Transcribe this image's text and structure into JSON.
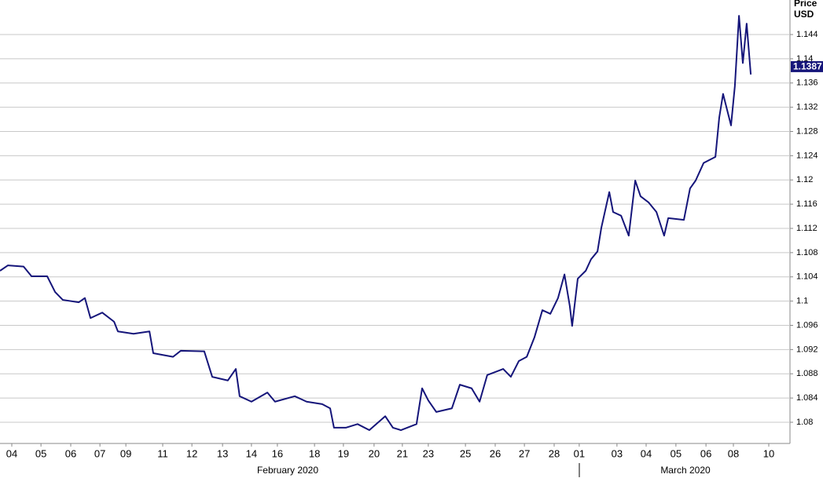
{
  "chart_data": {
    "type": "line",
    "y_axis_title": "Price",
    "y_axis_unit": "USD",
    "last_price": 1.1387,
    "month_labels": [
      "February 2020",
      "March 2020"
    ],
    "color": "#15157a",
    "grid": true,
    "xlim": [
      0,
      26.8
    ],
    "ylim": [
      1.0765,
      1.1497
    ],
    "yticks": [
      1.08,
      1.084,
      1.088,
      1.092,
      1.096,
      1.1,
      1.104,
      1.108,
      1.112,
      1.116,
      1.12,
      1.124,
      1.128,
      1.132,
      1.136,
      1.14,
      1.144
    ],
    "xticks": [
      {
        "value": 0.4,
        "label": "04"
      },
      {
        "value": 1.39,
        "label": "05"
      },
      {
        "value": 2.4,
        "label": "06"
      },
      {
        "value": 3.39,
        "label": "07"
      },
      {
        "value": 4.27,
        "label": "09"
      },
      {
        "value": 5.52,
        "label": "11"
      },
      {
        "value": 6.51,
        "label": "12"
      },
      {
        "value": 7.55,
        "label": "13"
      },
      {
        "value": 8.53,
        "label": "14"
      },
      {
        "value": 9.41,
        "label": "16"
      },
      {
        "value": 10.67,
        "label": "18"
      },
      {
        "value": 11.65,
        "label": "19"
      },
      {
        "value": 12.69,
        "label": "20"
      },
      {
        "value": 13.65,
        "label": "21"
      },
      {
        "value": 14.53,
        "label": "23"
      },
      {
        "value": 15.79,
        "label": "25"
      },
      {
        "value": 16.8,
        "label": "26"
      },
      {
        "value": 17.79,
        "label": "27"
      },
      {
        "value": 18.8,
        "label": "28"
      },
      {
        "value": 19.65,
        "label": "01"
      },
      {
        "value": 20.93,
        "label": "03"
      },
      {
        "value": 21.92,
        "label": "04"
      },
      {
        "value": 22.93,
        "label": "05"
      },
      {
        "value": 23.95,
        "label": "06"
      },
      {
        "value": 24.88,
        "label": "08"
      },
      {
        "value": 26.08,
        "label": "10"
      }
    ],
    "x": [
      0,
      0.27,
      0.8,
      1.07,
      1.6,
      1.87,
      2.13,
      2.67,
      2.88,
      3.07,
      3.47,
      3.87,
      4,
      4.53,
      5.07,
      5.2,
      5.87,
      6.13,
      6.93,
      7.2,
      7.73,
      8,
      8.13,
      8.53,
      9.07,
      9.33,
      10,
      10.4,
      10.93,
      11.2,
      11.33,
      11.73,
      12.13,
      12.53,
      13.07,
      13.33,
      13.6,
      14.13,
      14.32,
      14.53,
      14.8,
      15.33,
      15.6,
      16,
      16.27,
      16.53,
      17.07,
      17.33,
      17.6,
      17.87,
      18.13,
      18.4,
      18.67,
      18.93,
      19.15,
      19.33,
      19.41,
      19.6,
      19.87,
      20.05,
      20.27,
      20.4,
      20.67,
      20.8,
      21.07,
      21.33,
      21.55,
      21.73,
      22,
      22.27,
      22.53,
      22.67,
      23.2,
      23.41,
      23.6,
      23.87,
      24.27,
      24.4,
      24.53,
      24.8,
      24.93,
      25.07,
      25.2,
      25.33,
      25.47
    ],
    "values": [
      1.105,
      1.1059,
      1.1057,
      1.1041,
      1.1041,
      1.1015,
      1.1002,
      1.0998,
      1.1005,
      1.0972,
      1.0981,
      1.0966,
      1.095,
      1.0946,
      1.095,
      1.0914,
      1.0908,
      1.0918,
      1.0917,
      1.0875,
      1.0869,
      1.0888,
      1.0843,
      1.0834,
      1.0849,
      1.0834,
      1.0843,
      1.0834,
      1.083,
      1.0823,
      1.0791,
      1.0791,
      1.0797,
      1.0787,
      1.081,
      1.0791,
      1.0787,
      1.0797,
      1.0856,
      1.0836,
      1.0817,
      1.0823,
      1.0862,
      1.0856,
      1.0834,
      1.0878,
      1.0888,
      1.0875,
      1.0901,
      1.0908,
      1.094,
      1.0985,
      1.0979,
      1.1005,
      1.1044,
      1.0992,
      1.0959,
      1.1037,
      1.105,
      1.1069,
      1.1082,
      1.1121,
      1.118,
      1.1147,
      1.1141,
      1.1108,
      1.1199,
      1.1173,
      1.1163,
      1.1147,
      1.1108,
      1.1137,
      1.1134,
      1.1186,
      1.1199,
      1.1228,
      1.1238,
      1.1303,
      1.1342,
      1.129,
      1.1355,
      1.1471,
      1.1393,
      1.1458,
      1.1374
    ]
  }
}
